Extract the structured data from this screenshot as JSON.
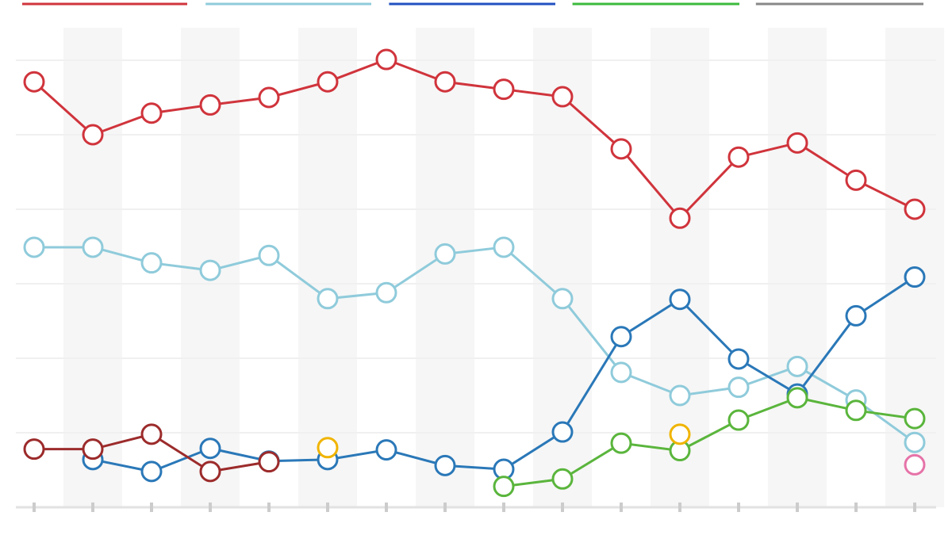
{
  "chart_data": {
    "type": "line",
    "xlim": [
      0,
      15
    ],
    "xticks": [
      0,
      1,
      2,
      3,
      4,
      5,
      6,
      7,
      8,
      9,
      10,
      11,
      12,
      13,
      14,
      15
    ],
    "ylim": [
      0,
      6.5
    ],
    "yticks": [
      0,
      1,
      2,
      3,
      4,
      5,
      6
    ],
    "grid": true,
    "legend_position": "top",
    "legend": [
      {
        "color": "#d0343c"
      },
      {
        "color": "#8fcbdb"
      },
      {
        "color": "#2050c0"
      },
      {
        "color": "#3cba3c"
      },
      {
        "color": "#888888"
      }
    ],
    "x": [
      0,
      1,
      2,
      3,
      4,
      5,
      6,
      7,
      8,
      9,
      10,
      11,
      12,
      13,
      14,
      15
    ],
    "series": [
      {
        "color": "#d0343c",
        "values": [
          5.71,
          5.0,
          5.29,
          5.4,
          5.5,
          5.71,
          6.01,
          5.71,
          5.61,
          5.51,
          4.81,
          3.88,
          4.7,
          4.89,
          4.39,
          4.0
        ]
      },
      {
        "color": "#8fcbdb",
        "values": [
          3.49,
          3.49,
          3.28,
          3.18,
          3.38,
          2.8,
          2.88,
          3.4,
          3.49,
          2.8,
          1.81,
          1.5,
          1.61,
          1.89,
          1.44,
          0.87
        ]
      },
      {
        "color": "#2a78b8",
        "values": [
          null,
          0.64,
          0.48,
          0.79,
          0.62,
          0.64,
          0.77,
          0.56,
          0.51,
          1.01,
          2.29,
          2.79,
          1.99,
          1.52,
          2.57,
          3.09
        ]
      },
      {
        "color": "#5ab53c",
        "values": [
          null,
          null,
          null,
          null,
          null,
          null,
          null,
          null,
          0.28,
          0.38,
          0.86,
          0.76,
          1.17,
          1.47,
          1.3,
          1.19
        ]
      },
      {
        "color": "#9c2b2b",
        "values": [
          0.78,
          0.78,
          0.98,
          0.48,
          0.61,
          null,
          null,
          null,
          null,
          null,
          null,
          null,
          null,
          null,
          null,
          null
        ]
      },
      {
        "color": "#f0b400",
        "values": [
          null,
          null,
          null,
          null,
          null,
          0.8,
          null,
          null,
          null,
          null,
          null,
          0.98,
          null,
          null,
          null,
          null
        ]
      },
      {
        "color": "#e673a8",
        "values": [
          null,
          null,
          null,
          null,
          null,
          null,
          null,
          null,
          null,
          null,
          null,
          null,
          null,
          null,
          null,
          0.57
        ]
      }
    ]
  }
}
